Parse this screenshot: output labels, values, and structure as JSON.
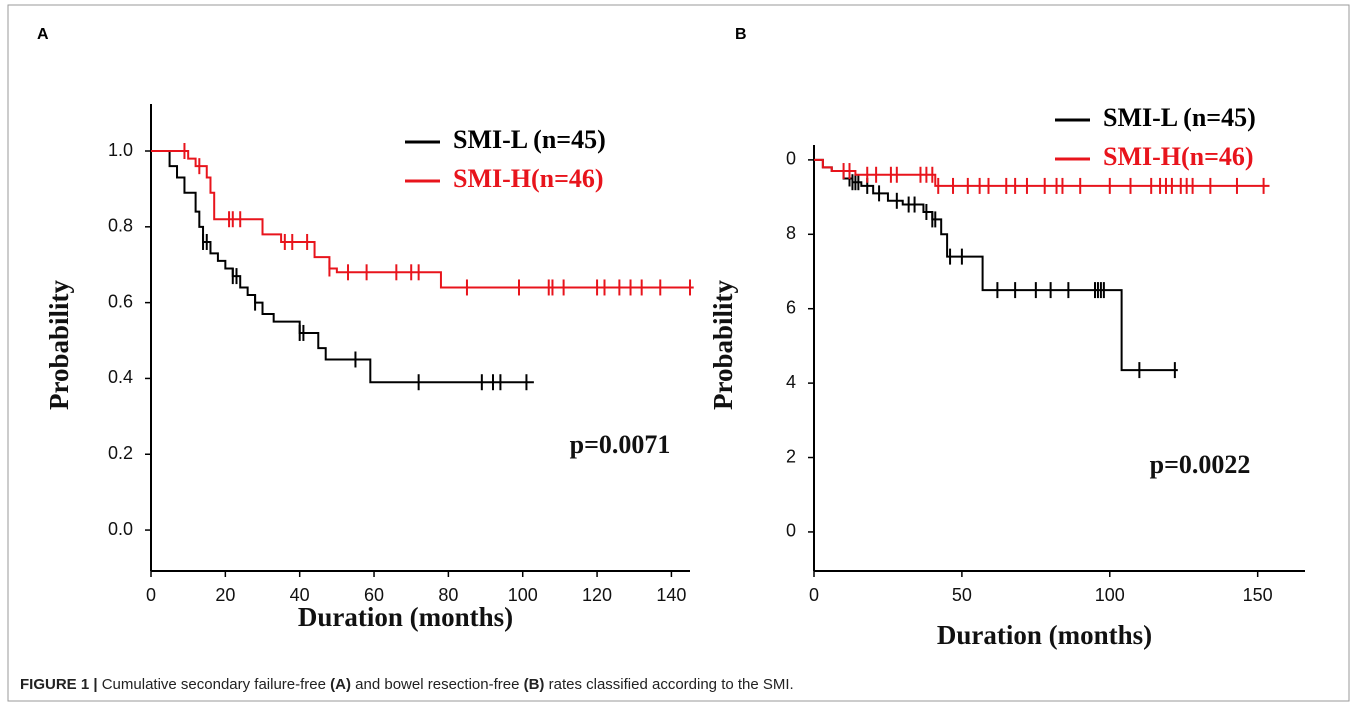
{
  "panel_labels": [
    "A",
    "B"
  ],
  "caption": {
    "label": "FIGURE 1 |",
    "parts": [
      "Cumulative secondary failure-free",
      "(A)",
      "and bowel resection-free",
      "(B)",
      "rates classified according to the SMI."
    ]
  },
  "chart_data": [
    {
      "type": "step",
      "xlabel": "Duration (months)",
      "ylabel": "Probability",
      "annotation": "p=0.0071",
      "legend": "top-right",
      "xlim": [
        0,
        145
      ],
      "ylim": [
        -0.108,
        1.124
      ],
      "xticks": [
        0,
        20,
        40,
        60,
        80,
        100,
        120,
        140
      ],
      "yticks": [
        {
          "value": 0,
          "label": "0.0"
        },
        0.2,
        0.4,
        0.6,
        0.8,
        {
          "value": 1,
          "label": "1.0"
        }
      ],
      "series": [
        {
          "name": "SMI-L (n=45)",
          "color": "#000000",
          "x": [
            0,
            5,
            7,
            9,
            12,
            13,
            14,
            16,
            18,
            20,
            22,
            24,
            26,
            28,
            30,
            33,
            40,
            45,
            47,
            59,
            103
          ],
          "values": [
            1.0,
            0.96,
            0.93,
            0.89,
            0.84,
            0.8,
            0.76,
            0.73,
            0.71,
            0.69,
            0.67,
            0.64,
            0.62,
            0.6,
            0.57,
            0.55,
            0.52,
            0.48,
            0.45,
            0.39,
            0.39
          ],
          "censored": [
            14,
            15,
            22,
            23,
            28,
            40,
            41,
            55,
            72,
            89,
            92,
            94,
            101
          ]
        },
        {
          "name": "SMI-H(n=46)",
          "color": "#e8141c",
          "x": [
            0,
            10,
            12,
            15,
            16,
            17,
            30,
            35,
            44,
            48,
            50,
            78,
            146
          ],
          "values": [
            1.0,
            0.98,
            0.96,
            0.93,
            0.89,
            0.82,
            0.78,
            0.76,
            0.72,
            0.69,
            0.68,
            0.64,
            0.64
          ],
          "censored": [
            9,
            13,
            21,
            22,
            24,
            36,
            38,
            42,
            48,
            53,
            58,
            66,
            70,
            72,
            85,
            99,
            107,
            108,
            111,
            120,
            122,
            126,
            129,
            132,
            137,
            145
          ]
        }
      ]
    },
    {
      "type": "step",
      "xlabel": "Duration (months)",
      "ylabel": "Probability",
      "annotation": "p=0.0022",
      "legend": "top-right",
      "xlim": [
        0,
        166
      ],
      "ylim": [
        -0.105,
        1.04
      ],
      "xticks": [
        0,
        50,
        100,
        150
      ],
      "yticks": [
        0,
        {
          "value": 0.2,
          "label": "2"
        },
        {
          "value": 0.4,
          "label": "4"
        },
        {
          "value": 0.6,
          "label": "6"
        },
        {
          "value": 0.8,
          "label": "8"
        },
        {
          "value": 1,
          "label": "0"
        }
      ],
      "series": [
        {
          "name": "SMI-L (n=45)",
          "color": "#000000",
          "x": [
            0,
            3,
            6,
            10,
            13,
            16,
            20,
            25,
            30,
            37,
            40,
            43,
            45,
            57,
            104,
            123
          ],
          "values": [
            1.0,
            0.98,
            0.97,
            0.95,
            0.94,
            0.93,
            0.91,
            0.89,
            0.88,
            0.86,
            0.84,
            0.8,
            0.74,
            0.65,
            0.435,
            0.435
          ],
          "censored": [
            12,
            13,
            14,
            15,
            18,
            22,
            28,
            32,
            34,
            38,
            40,
            41,
            46,
            50,
            62,
            68,
            75,
            80,
            86,
            95,
            96,
            97,
            98,
            110,
            122
          ]
        },
        {
          "name": "SMI-H(n=46)",
          "color": "#e8141c",
          "x": [
            0,
            3,
            6,
            14,
            41,
            154
          ],
          "values": [
            1.0,
            0.98,
            0.97,
            0.96,
            0.93,
            0.93
          ],
          "censored": [
            10,
            12,
            18,
            21,
            26,
            28,
            36,
            38,
            40,
            42,
            47,
            52,
            56,
            59,
            65,
            68,
            72,
            78,
            82,
            84,
            90,
            100,
            107,
            114,
            117,
            119,
            121,
            124,
            126,
            128,
            134,
            143,
            152
          ]
        }
      ]
    }
  ]
}
